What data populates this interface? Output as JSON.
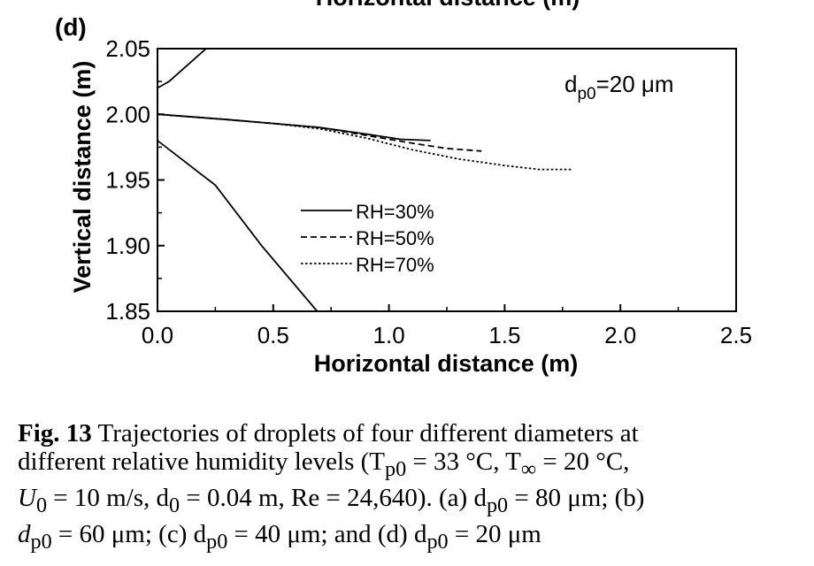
{
  "chart_data": {
    "type": "line",
    "top_title_cropped": "Horizontal distance (m)",
    "panel_label": "(d)",
    "annotation": "d",
    "annotation_sub": "p0",
    "annotation_rest": "=20 μm",
    "xlabel": "Horizontal distance (m)",
    "ylabel": "Vertical distance (m)",
    "xlim": [
      0.0,
      2.5
    ],
    "ylim": [
      1.85,
      2.05
    ],
    "xticks": [
      "0.0",
      "0.5",
      "1.0",
      "1.5",
      "2.0",
      "2.5"
    ],
    "yticks": [
      "1.85",
      "1.90",
      "1.95",
      "2.00",
      "2.05"
    ],
    "grid": false,
    "legend_position": "center-left",
    "series": [
      {
        "name": "RH=30%",
        "style": "solid",
        "x": [
          0.0,
          0.3,
          0.5,
          0.7,
          0.9,
          1.05,
          1.18
        ],
        "y": [
          2.0,
          1.996,
          1.993,
          1.99,
          1.985,
          1.981,
          1.98
        ]
      },
      {
        "name": "RH=50%",
        "style": "dashed",
        "x": [
          0.0,
          0.3,
          0.5,
          0.7,
          0.9,
          1.1,
          1.25,
          1.4
        ],
        "y": [
          2.0,
          1.996,
          1.993,
          1.99,
          1.984,
          1.978,
          1.974,
          1.972
        ]
      },
      {
        "name": "RH=70%",
        "style": "dotted",
        "x": [
          0.0,
          0.3,
          0.5,
          0.7,
          0.9,
          1.1,
          1.3,
          1.5,
          1.65,
          1.79
        ],
        "y": [
          2.0,
          1.996,
          1.993,
          1.989,
          1.982,
          1.973,
          1.966,
          1.961,
          1.958,
          1.958
        ]
      },
      {
        "name": "",
        "style": "solid",
        "x": [
          0.0,
          0.25,
          0.45,
          0.69
        ],
        "y": [
          1.98,
          1.946,
          1.9,
          1.85
        ]
      },
      {
        "name": "",
        "style": "solid",
        "x": [
          0.0,
          0.05,
          0.21
        ],
        "y": [
          2.02,
          2.025,
          2.05
        ]
      }
    ]
  },
  "caption": {
    "fig_label": "Fig. 13",
    "line1": " Trajectories of droplets of four different diameters at",
    "line2": "different relative humidity levels (T",
    "line2_sub": "p0",
    "line2_rest": " = 33 °C,  T",
    "line2_sub2": "∞",
    "line2_rest2": " = 20 °C,",
    "line3": "U",
    "line3_sub": "0",
    "line3_rest": " = 10 m/s, d",
    "line3_sub2": "0",
    "line3_rest2": " = 0.04 m, Re = 24,640). (a) d",
    "line3_sub3": "p0",
    "line3_rest3": " = 80 μm; (b)",
    "line4": "d",
    "line4_sub": "p0",
    "line4_rest": " = 60 μm; (c) d",
    "line4_sub2": "p0",
    "line4_rest2": " = 40 μm; and (d) d",
    "line4_sub3": "p0",
    "line4_rest3": " = 20 μm"
  }
}
